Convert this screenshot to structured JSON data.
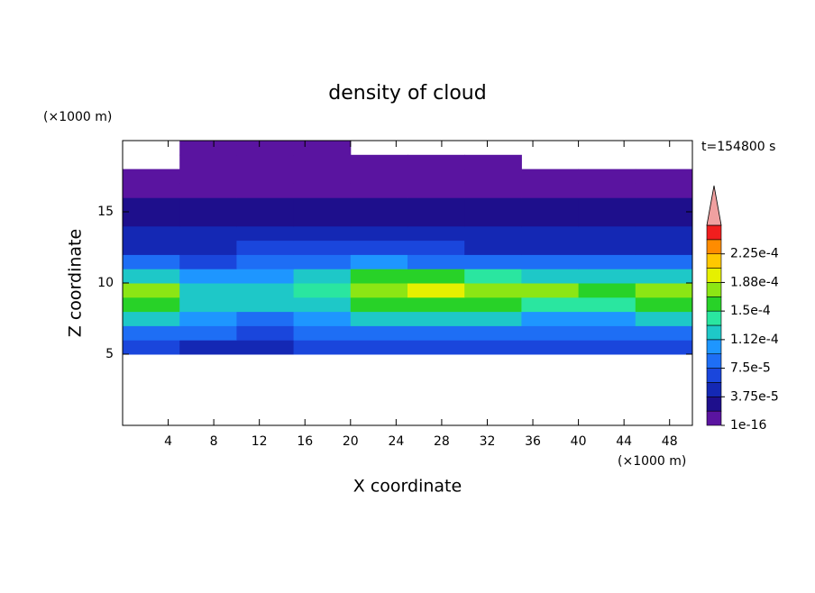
{
  "chart_data": {
    "type": "contour",
    "title": "density of cloud",
    "x_label": "X coordinate",
    "y_label": "Z coordinate",
    "x_unit": "(×1000 m)",
    "y_unit": "(×1000 m)",
    "annotation": "t=154800 s",
    "xlim": [
      0,
      50
    ],
    "ylim": [
      0,
      20
    ],
    "xticks": [
      4,
      8,
      12,
      16,
      20,
      24,
      28,
      32,
      36,
      40,
      44,
      48
    ],
    "yticks": [
      5,
      10,
      15
    ],
    "x": [
      0,
      5,
      10,
      15,
      20,
      25,
      30,
      35,
      40,
      45,
      50
    ],
    "y": [
      5,
      6,
      7,
      8,
      9,
      10,
      11,
      12,
      13,
      14,
      15,
      16,
      17,
      18,
      19,
      20
    ],
    "values": [
      [
        6e-05,
        5e-05,
        5e-05,
        6e-05,
        6e-05,
        6e-05,
        6e-05,
        6e-05,
        6e-05,
        6e-05
      ],
      [
        9e-05,
        8e-05,
        7e-05,
        8e-05,
        9e-05,
        9e-05,
        9e-05,
        8e-05,
        8e-05,
        9e-05
      ],
      [
        0.00012,
        0.0001,
        9e-05,
        0.00011,
        0.00012,
        0.00012,
        0.00012,
        0.00011,
        0.00011,
        0.00012
      ],
      [
        0.00015,
        0.00012,
        0.00012,
        0.00013,
        0.00015,
        0.00015,
        0.00015,
        0.00014,
        0.00014,
        0.00015
      ],
      [
        0.00017,
        0.00013,
        0.00013,
        0.00014,
        0.00018,
        0.00019,
        0.00017,
        0.00017,
        0.00015,
        0.00017
      ],
      [
        0.00013,
        0.0001,
        0.00011,
        0.00012,
        0.00015,
        0.00016,
        0.00014,
        0.00013,
        0.00012,
        0.00013
      ],
      [
        8e-05,
        7e-05,
        8e-05,
        9e-05,
        0.0001,
        9e-05,
        8e-05,
        8e-05,
        8e-05,
        8e-05
      ],
      [
        5e-05,
        5e-05,
        6e-05,
        6e-05,
        6e-05,
        6e-05,
        5e-05,
        5e-05,
        5e-05,
        5e-05
      ],
      [
        4e-05,
        4e-05,
        4e-05,
        4e-05,
        4e-05,
        4e-05,
        4e-05,
        4e-05,
        4e-05,
        4e-05
      ],
      [
        3e-05,
        3e-05,
        3e-05,
        3e-05,
        3e-05,
        3e-05,
        3e-05,
        3e-05,
        3e-05,
        3e-05
      ],
      [
        2e-05,
        2e-05,
        2e-05,
        2e-05,
        2e-05,
        2e-05,
        2e-05,
        2e-05,
        2e-05,
        2e-05
      ],
      [
        1e-05,
        1e-05,
        1e-05,
        1e-05,
        1e-05,
        1e-05,
        1e-05,
        1e-05,
        1e-05,
        1e-05
      ],
      [
        1e-05,
        5e-06,
        5e-06,
        5e-06,
        5e-06,
        5e-06,
        5e-06,
        5e-06,
        5e-06,
        5e-06
      ],
      [
        null,
        5e-06,
        5e-06,
        5e-06,
        5e-06,
        5e-06,
        5e-06,
        null,
        null,
        null
      ],
      [
        null,
        5e-06,
        5e-06,
        5e-06,
        null,
        null,
        null,
        null,
        null,
        null
      ]
    ],
    "levels": [
      1e-16,
      1.875e-05,
      3.75e-05,
      5.625e-05,
      7.5e-05,
      9.375e-05,
      0.000112,
      0.00013125,
      0.00015,
      0.00016875,
      0.000188,
      0.00020625,
      0.000225,
      0.00024375,
      0.0002625
    ],
    "colors": [
      "#5a14a0",
      "#1e0f8c",
      "#1428b4",
      "#1a46dc",
      "#1e6ef5",
      "#1e96ff",
      "#1ec8c8",
      "#2ae6a0",
      "#28d228",
      "#8ce614",
      "#e6f000",
      "#ffc800",
      "#ff8c00",
      "#f01e1e"
    ],
    "extend_color": "#f0a0a0",
    "colorbar_ticks": [
      {
        "value": 1e-16,
        "label": "1e-16"
      },
      {
        "value": 3.75e-05,
        "label": "3.75e-5"
      },
      {
        "value": 7.5e-05,
        "label": "7.5e-5"
      },
      {
        "value": 0.000112,
        "label": "1.12e-4"
      },
      {
        "value": 0.00015,
        "label": "1.5e-4"
      },
      {
        "value": 0.000188,
        "label": "1.88e-4"
      },
      {
        "value": 0.000225,
        "label": "2.25e-4"
      }
    ]
  }
}
